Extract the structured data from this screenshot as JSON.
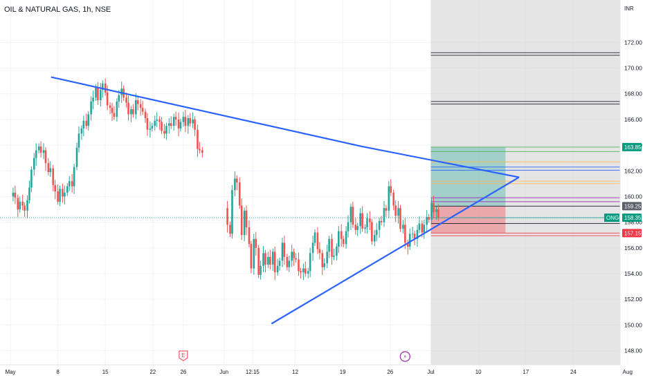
{
  "header": {
    "symbol_title": "OIL & NATURAL GAS, 1h, NSE"
  },
  "price_scale": {
    "currency_label": "INR"
  },
  "markers": {
    "earnings_icon": "earnings-icon",
    "split_icon": "lightning-icon",
    "earnings_glyph": "E",
    "split_glyph": "⚡"
  },
  "colors": {
    "up_candle": "#26a69a",
    "down_candle": "#ef5350",
    "trendline": "#2962ff",
    "target_box": "#26a69a",
    "stop_box": "#f23645",
    "grey_zone": "#d1cfcf"
  },
  "price_tags": [
    {
      "value": "163.85",
      "color": "#089981"
    },
    {
      "value": "159.25",
      "color": "#5d606b"
    },
    {
      "value": "158.35",
      "label": "ONGC",
      "color": "#089981"
    },
    {
      "value": "157.15",
      "color": "#f23645"
    }
  ],
  "chart_data": {
    "type": "candlestick",
    "title": "OIL & NATURAL GAS, 1h, NSE",
    "ylabel": "INR",
    "ylim": [
      146.9,
      175.3
    ],
    "y_ticks": [
      "172.00",
      "170.00",
      "168.00",
      "166.00",
      "164.00",
      "162.00",
      "160.00",
      "158.00",
      "156.00",
      "154.00",
      "152.00",
      "150.00",
      "148.00"
    ],
    "y_tick_values": [
      172,
      170,
      168,
      166,
      164,
      162,
      160,
      158,
      156,
      154,
      152,
      150,
      148
    ],
    "x_tick_labels": [
      "May",
      "8",
      "15",
      "22",
      "26",
      "Jun",
      "12:15",
      "12",
      "19",
      "26",
      "Jul",
      "10",
      "17",
      "24",
      "Aug"
    ],
    "x_tick_positions": [
      0.0,
      7.0,
      14.0,
      21.0,
      25.5,
      31.5,
      35.7,
      42.0,
      49.0,
      56.0,
      62.0,
      69.0,
      76.0,
      83.0,
      91.0
    ],
    "date_axis_start": "May 1",
    "last_price": 158.35,
    "price_lines": [
      {
        "price": 171.2,
        "color": "#131722"
      },
      {
        "price": 171.0,
        "color": "#131722"
      },
      {
        "price": 167.4,
        "color": "#131722"
      },
      {
        "price": 167.2,
        "color": "#131722"
      },
      {
        "price": 163.85,
        "color": "#4caf50"
      },
      {
        "price": 163.5,
        "color": "#4caf50"
      },
      {
        "price": 162.7,
        "color": "#ffb74d"
      },
      {
        "price": 162.3,
        "color": "#2962ff"
      },
      {
        "price": 162.05,
        "color": "#2962ff"
      },
      {
        "price": 161.2,
        "color": "#ffb74d"
      },
      {
        "price": 161.0,
        "color": "#ffb74d"
      },
      {
        "price": 159.9,
        "color": "#9c27b0"
      },
      {
        "price": 159.6,
        "color": "#9c27b0"
      },
      {
        "price": 159.25,
        "color": "#131722"
      },
      {
        "price": 158.35,
        "color": "#26a69a"
      },
      {
        "price": 157.9,
        "color": "#131722"
      },
      {
        "price": 157.15,
        "color": "#f23645"
      },
      {
        "price": 156.95,
        "color": "#f23645"
      }
    ],
    "trendlines": [
      {
        "x": [
          6.0,
          51.8
        ],
        "y": [
          169.3,
          163.9
        ],
        "color": "#2962ff"
      },
      {
        "x": [
          51.8,
          75.0
        ],
        "y": [
          163.9,
          161.5
        ],
        "color": "#2962ff"
      },
      {
        "x": [
          38.5,
          75.0
        ],
        "y": [
          150.1,
          161.5
        ],
        "color": "#2962ff"
      }
    ],
    "zones": [
      {
        "kind": "grey",
        "x": [
          62.0,
          91.0
        ],
        "y": [
          146.9,
          175.3
        ]
      },
      {
        "kind": "target",
        "x": [
          62.0,
          73.0
        ],
        "y": [
          159.25,
          163.85
        ]
      },
      {
        "kind": "stop",
        "x": [
          62.0,
          73.0
        ],
        "y": [
          157.15,
          159.25
        ]
      }
    ],
    "candles_close_path": [
      [
        0.0,
        160.0
      ],
      [
        0.4,
        160.3
      ],
      [
        0.7,
        159.9
      ],
      [
        1.1,
        159.0
      ],
      [
        1.4,
        159.6
      ],
      [
        1.8,
        159.3
      ],
      [
        2.1,
        158.9
      ],
      [
        2.5,
        159.7
      ],
      [
        2.8,
        160.7
      ],
      [
        3.1,
        162.1
      ],
      [
        3.5,
        163.0
      ],
      [
        3.8,
        163.6
      ],
      [
        4.2,
        163.9
      ],
      [
        4.5,
        163.4
      ],
      [
        4.9,
        163.6
      ],
      [
        5.2,
        162.6
      ],
      [
        5.6,
        161.9
      ],
      [
        5.9,
        162.2
      ],
      [
        6.3,
        160.9
      ],
      [
        6.6,
        160.4
      ],
      [
        7.0,
        159.6
      ],
      [
        7.3,
        160.6
      ],
      [
        7.7,
        160.0
      ],
      [
        8.0,
        160.3
      ],
      [
        8.4,
        160.8
      ],
      [
        8.7,
        161.2
      ],
      [
        9.1,
        160.8
      ],
      [
        9.4,
        162.3
      ],
      [
        9.8,
        163.8
      ],
      [
        10.1,
        164.9
      ],
      [
        10.5,
        165.3
      ],
      [
        10.8,
        165.9
      ],
      [
        11.2,
        165.5
      ],
      [
        11.5,
        166.4
      ],
      [
        11.9,
        167.4
      ],
      [
        12.2,
        167.7
      ],
      [
        12.6,
        168.5
      ],
      [
        12.9,
        167.5
      ],
      [
        13.3,
        168.3
      ],
      [
        13.6,
        168.8
      ],
      [
        14.0,
        168.1
      ],
      [
        14.3,
        167.1
      ],
      [
        14.7,
        166.9
      ],
      [
        15.0,
        166.5
      ],
      [
        15.3,
        166.2
      ],
      [
        15.7,
        167.4
      ],
      [
        16.0,
        167.9
      ],
      [
        16.4,
        168.4
      ],
      [
        16.7,
        167.7
      ],
      [
        17.1,
        167.3
      ],
      [
        17.4,
        166.4
      ],
      [
        17.8,
        166.8
      ],
      [
        18.1,
        166.4
      ],
      [
        18.5,
        167.5
      ],
      [
        18.8,
        167.2
      ],
      [
        19.2,
        166.9
      ],
      [
        19.5,
        166.6
      ],
      [
        19.9,
        166.1
      ],
      [
        20.2,
        165.2
      ],
      [
        20.6,
        165.3
      ],
      [
        20.9,
        165.5
      ],
      [
        21.3,
        165.9
      ],
      [
        21.6,
        166.0
      ],
      [
        22.0,
        165.8
      ],
      [
        22.3,
        165.1
      ],
      [
        22.7,
        164.9
      ],
      [
        23.0,
        165.5
      ],
      [
        23.4,
        165.7
      ],
      [
        23.7,
        165.5
      ],
      [
        24.1,
        166.2
      ],
      [
        24.4,
        166.0
      ],
      [
        24.8,
        165.3
      ],
      [
        25.1,
        165.8
      ],
      [
        25.5,
        166.2
      ],
      [
        25.8,
        165.5
      ],
      [
        26.2,
        166.1
      ],
      [
        26.5,
        165.7
      ],
      [
        26.9,
        166.0
      ],
      [
        27.2,
        165.2
      ],
      [
        27.6,
        163.7
      ],
      [
        27.9,
        163.6
      ],
      [
        28.3,
        163.4
      ],
      [
        31.7,
        159.1
      ],
      [
        32.0,
        157.8
      ],
      [
        32.4,
        157.1
      ],
      [
        32.7,
        160.5
      ],
      [
        33.1,
        161.4
      ],
      [
        33.4,
        161.1
      ],
      [
        33.8,
        159.3
      ],
      [
        34.1,
        157.0
      ],
      [
        34.5,
        158.9
      ],
      [
        34.8,
        157.6
      ],
      [
        35.2,
        156.3
      ],
      [
        35.5,
        154.4
      ],
      [
        35.9,
        156.7
      ],
      [
        36.2,
        156.0
      ],
      [
        36.6,
        153.9
      ],
      [
        36.9,
        154.6
      ],
      [
        37.3,
        155.6
      ],
      [
        37.6,
        154.7
      ],
      [
        38.0,
        155.3
      ],
      [
        38.3,
        154.7
      ],
      [
        38.7,
        155.7
      ],
      [
        39.0,
        154.1
      ],
      [
        39.4,
        154.6
      ],
      [
        39.7,
        155.0
      ],
      [
        40.1,
        156.4
      ],
      [
        40.4,
        155.3
      ],
      [
        40.8,
        154.5
      ],
      [
        41.1,
        155.0
      ],
      [
        41.5,
        155.7
      ],
      [
        41.8,
        155.2
      ],
      [
        42.1,
        155.1
      ],
      [
        42.5,
        154.2
      ],
      [
        42.8,
        154.1
      ],
      [
        43.2,
        154.4
      ],
      [
        43.5,
        154.0
      ],
      [
        43.9,
        154.2
      ],
      [
        44.2,
        155.6
      ],
      [
        44.6,
        156.4
      ],
      [
        44.9,
        157.2
      ],
      [
        45.3,
        155.9
      ],
      [
        45.6,
        155.6
      ],
      [
        46.0,
        154.5
      ],
      [
        46.3,
        154.8
      ],
      [
        46.7,
        155.7
      ],
      [
        47.0,
        156.7
      ],
      [
        47.4,
        155.3
      ],
      [
        47.7,
        155.4
      ],
      [
        48.1,
        156.1
      ],
      [
        48.4,
        157.3
      ],
      [
        48.8,
        156.7
      ],
      [
        49.1,
        156.3
      ],
      [
        49.5,
        157.3
      ],
      [
        49.8,
        158.0
      ],
      [
        50.2,
        159.2
      ],
      [
        50.5,
        157.8
      ],
      [
        50.9,
        157.4
      ],
      [
        51.2,
        157.7
      ],
      [
        51.6,
        158.7
      ],
      [
        51.9,
        157.5
      ],
      [
        52.3,
        157.6
      ],
      [
        52.6,
        158.3
      ],
      [
        53.0,
        158.0
      ],
      [
        53.3,
        156.5
      ],
      [
        53.7,
        157.0
      ],
      [
        54.0,
        157.4
      ],
      [
        54.4,
        158.1
      ],
      [
        54.7,
        158.0
      ],
      [
        55.1,
        159.1
      ],
      [
        55.4,
        158.9
      ],
      [
        55.8,
        160.8
      ],
      [
        56.1,
        160.3
      ],
      [
        56.5,
        159.3
      ],
      [
        56.8,
        158.5
      ],
      [
        57.2,
        159.1
      ],
      [
        57.5,
        157.5
      ],
      [
        57.9,
        157.8
      ],
      [
        58.2,
        156.4
      ],
      [
        58.6,
        156.1
      ],
      [
        58.9,
        157.1
      ],
      [
        59.3,
        157.1
      ],
      [
        59.6,
        156.7
      ],
      [
        60.0,
        157.4
      ],
      [
        60.3,
        157.9
      ],
      [
        60.7,
        157.2
      ],
      [
        61.0,
        157.8
      ],
      [
        61.4,
        158.4
      ],
      [
        61.7,
        158.2
      ],
      [
        62.1,
        159.5
      ],
      [
        62.4,
        158.8
      ],
      [
        62.8,
        159.0
      ],
      [
        63.1,
        158.35
      ]
    ],
    "grid": true,
    "legend": "none"
  }
}
